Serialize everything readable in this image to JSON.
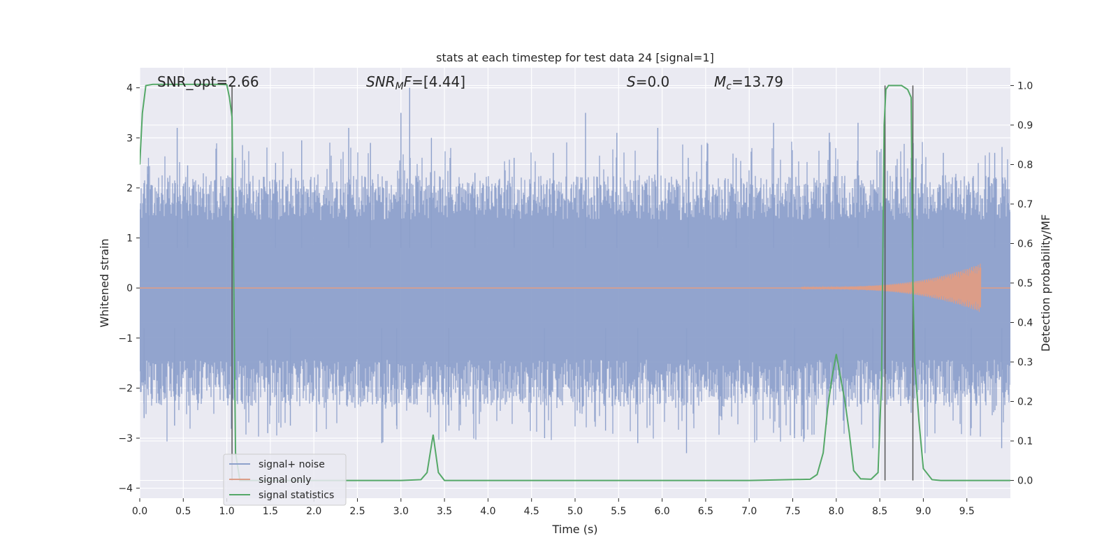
{
  "chart_data": {
    "type": "line",
    "title": "stats at each timestep for test data 24 [signal=1]",
    "xlabel": "Time (s)",
    "ylabel": "Whitened strain",
    "y2label": "Detection probability/MF",
    "xlim": [
      0.0,
      10.0
    ],
    "ylim": [
      -4.2,
      4.4
    ],
    "y2lim": [
      -0.045,
      1.045
    ],
    "x_ticks": [
      0.0,
      0.5,
      1.0,
      1.5,
      2.0,
      2.5,
      3.0,
      3.5,
      4.0,
      4.5,
      5.0,
      5.5,
      6.0,
      6.5,
      7.0,
      7.5,
      8.0,
      8.5,
      9.0,
      9.5
    ],
    "x_tick_labels": [
      "0.0",
      "0.5",
      "1.0",
      "1.5",
      "2.0",
      "2.5",
      "3.0",
      "3.5",
      "4.0",
      "4.5",
      "5.0",
      "5.5",
      "6.0",
      "6.5",
      "7.0",
      "7.5",
      "8.0",
      "8.5",
      "9.0",
      "9.5"
    ],
    "y_ticks": [
      4,
      3,
      2,
      1,
      0,
      -1,
      -2,
      -3,
      -4
    ],
    "y_tick_labels": [
      "4",
      "3",
      "2",
      "1",
      "0",
      "−1",
      "−2",
      "−3",
      "−4"
    ],
    "y2_ticks": [
      1.0,
      0.9,
      0.8,
      0.7,
      0.6,
      0.5,
      0.4,
      0.3,
      0.2,
      0.1,
      0.0
    ],
    "y2_tick_labels": [
      "1.0",
      "0.9",
      "0.8",
      "0.7",
      "0.6",
      "0.5",
      "0.4",
      "0.3",
      "0.2",
      "0.1",
      "0.0"
    ],
    "grid": true,
    "legend_position": "lower-left",
    "annotations": {
      "snr_opt": "SNR_opt=2.66",
      "snr_mf_italic": "SNR",
      "snr_mf_sub": "M",
      "snr_mf_italic2": "F",
      "snr_mf_value": "=[4.44]",
      "s_italic": "S",
      "s_value": "=0.0",
      "mc_italic": "M",
      "mc_sub": "c",
      "mc_value": "=13.79"
    },
    "vertical_lines_x": [
      1.06,
      8.56,
      8.88
    ],
    "series": [
      {
        "name": "signal+ noise",
        "color": "#8da0cb",
        "axis": "left",
        "envelope_typical": [
          -1.9,
          1.8
        ],
        "peak_values": [
          [
            0.1,
            2.6
          ],
          [
            0.43,
            3.2
          ],
          [
            0.55,
            2.45
          ],
          [
            1.1,
            2.6
          ],
          [
            1.56,
            2.5
          ],
          [
            1.86,
            2.95
          ],
          [
            2.4,
            3.2
          ],
          [
            2.65,
            2.9
          ],
          [
            3.0,
            3.5
          ],
          [
            3.1,
            4.0
          ],
          [
            3.35,
            3.0
          ],
          [
            3.85,
            2.3
          ],
          [
            4.3,
            2.6
          ],
          [
            4.75,
            2.7
          ],
          [
            5.12,
            3.5
          ],
          [
            5.48,
            3.1
          ],
          [
            5.95,
            3.2
          ],
          [
            6.3,
            2.6
          ],
          [
            6.85,
            2.6
          ],
          [
            7.28,
            3.3
          ],
          [
            7.92,
            3.1
          ],
          [
            8.25,
            3.3
          ],
          [
            8.55,
            2.9
          ],
          [
            8.86,
            2.6
          ],
          [
            9.23,
            2.7
          ],
          [
            9.82,
            2.7
          ]
        ],
        "trough_values": [
          [
            0.05,
            -2.6
          ],
          [
            0.4,
            -2.75
          ],
          [
            1.47,
            -2.9
          ],
          [
            1.73,
            -2.75
          ],
          [
            2.78,
            -3.1
          ],
          [
            2.95,
            -2.75
          ],
          [
            3.55,
            -2.75
          ],
          [
            4.65,
            -3.0
          ],
          [
            5.35,
            -2.85
          ],
          [
            5.72,
            -3.1
          ],
          [
            6.28,
            -3.3
          ],
          [
            7.52,
            -3.0
          ],
          [
            8.08,
            -2.65
          ],
          [
            8.42,
            -3.2
          ],
          [
            9.02,
            -3.3
          ],
          [
            9.55,
            -2.8
          ],
          [
            9.9,
            -3.2
          ]
        ]
      },
      {
        "name": "signal only",
        "color": "#dc9d88",
        "axis": "left",
        "chirp_start": 7.6,
        "chirp_end": 9.66,
        "peak_amplitude": 0.47
      },
      {
        "name": "signal statistics",
        "color": "#55a868",
        "axis": "right",
        "x": [
          0.0,
          0.03,
          0.07,
          0.15,
          0.3,
          0.5,
          0.7,
          0.9,
          1.0,
          1.03,
          1.06,
          1.08,
          1.1,
          1.15,
          1.25,
          2.0,
          3.0,
          3.23,
          3.3,
          3.37,
          3.43,
          3.5,
          4.0,
          5.0,
          6.0,
          7.0,
          7.7,
          7.78,
          7.85,
          7.9,
          7.95,
          8.0,
          8.05,
          8.1,
          8.15,
          8.2,
          8.28,
          8.4,
          8.48,
          8.52,
          8.55,
          8.57,
          8.6,
          8.65,
          8.75,
          8.82,
          8.86,
          8.88,
          8.9,
          8.95,
          9.0,
          9.1,
          9.2,
          10.0
        ],
        "y": [
          0.8,
          0.93,
          1.0,
          1.003,
          1.003,
          1.003,
          1.003,
          1.003,
          1.002,
          0.97,
          0.92,
          0.5,
          0.07,
          0.0,
          0.0,
          0.0,
          0.0,
          0.002,
          0.02,
          0.116,
          0.02,
          0.0,
          0.0,
          0.0,
          0.0,
          0.0,
          0.003,
          0.015,
          0.07,
          0.18,
          0.26,
          0.32,
          0.26,
          0.2,
          0.12,
          0.025,
          0.004,
          0.003,
          0.02,
          0.25,
          0.9,
          0.99,
          1.0,
          1.0,
          1.0,
          0.99,
          0.97,
          0.5,
          0.3,
          0.15,
          0.03,
          0.002,
          0.0,
          0.0
        ]
      }
    ]
  }
}
